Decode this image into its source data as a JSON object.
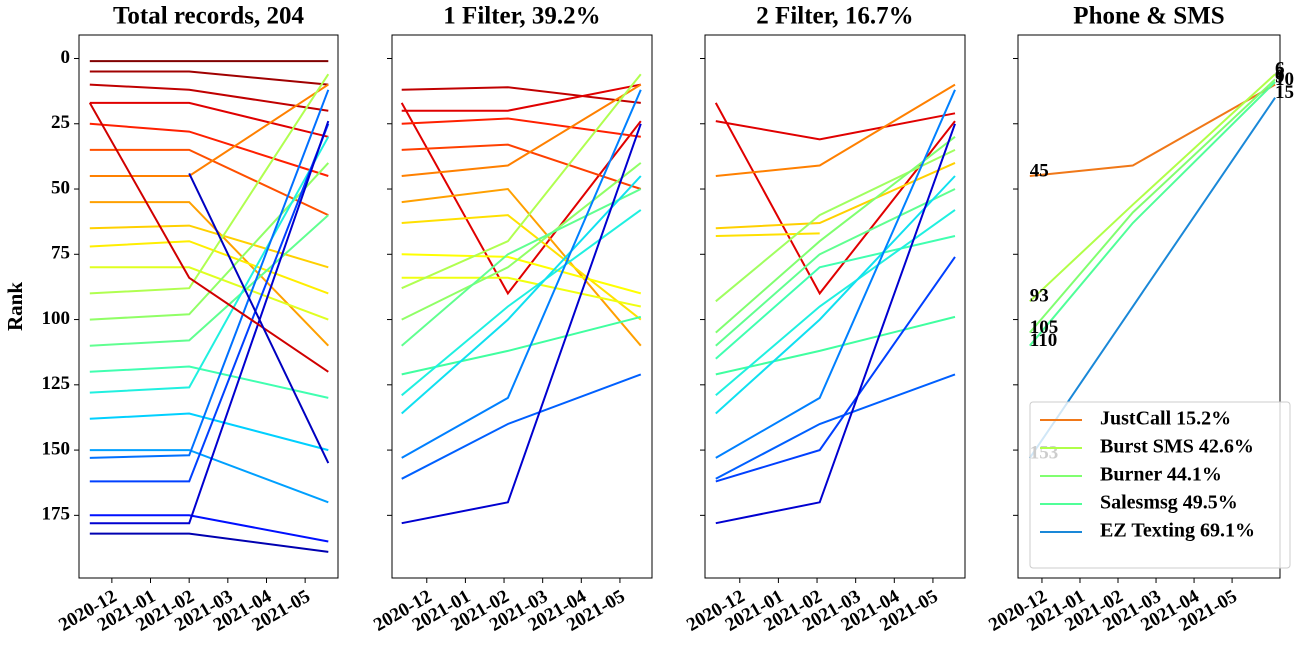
{
  "chart_data": [
    {
      "type": "line",
      "title": "Total records, 204",
      "ylabel": "Rank",
      "x": [
        -0.57,
        2.0,
        5.6
      ],
      "xlim": [
        -0.85,
        5.85
      ],
      "xticks": [
        {
          "value": 0,
          "label": "2020-12"
        },
        {
          "value": 1,
          "label": "2021-01"
        },
        {
          "value": 2,
          "label": "2021-02"
        },
        {
          "value": 3,
          "label": "2021-03"
        },
        {
          "value": 4,
          "label": "2021-04"
        },
        {
          "value": 5,
          "label": "2021-05"
        }
      ],
      "ylim": [
        199,
        -9
      ],
      "yticks": [
        0,
        25,
        50,
        75,
        100,
        125,
        150,
        175
      ],
      "ytick_labels": true,
      "series": [
        {
          "color": "#800000",
          "values": [
            1,
            1,
            1
          ]
        },
        {
          "color": "#a00000",
          "values": [
            5,
            5,
            10
          ]
        },
        {
          "color": "#c00000",
          "values": [
            10,
            12,
            20
          ]
        },
        {
          "color": "#e00000",
          "values": [
            17,
            17,
            30
          ]
        },
        {
          "color": "#ff2000",
          "values": [
            25,
            28,
            45
          ]
        },
        {
          "color": "#ff5000",
          "values": [
            35,
            35,
            60
          ]
        },
        {
          "color": "#ff8000",
          "values": [
            45,
            45,
            10
          ]
        },
        {
          "color": "#ffa000",
          "values": [
            55,
            55,
            110
          ]
        },
        {
          "color": "#ffd000",
          "values": [
            65,
            64,
            80
          ]
        },
        {
          "color": "#ffee00",
          "values": [
            72,
            70,
            90
          ]
        },
        {
          "color": "#e0ff20",
          "values": [
            80,
            80,
            100
          ]
        },
        {
          "color": "#b0ff50",
          "values": [
            90,
            88,
            6
          ]
        },
        {
          "color": "#90ff66",
          "values": [
            100,
            98,
            40
          ]
        },
        {
          "color": "#60ff90",
          "values": [
            110,
            108,
            60
          ]
        },
        {
          "color": "#40ffb0",
          "values": [
            120,
            118,
            130
          ]
        },
        {
          "color": "#20f0e0",
          "values": [
            128,
            126,
            30
          ]
        },
        {
          "color": "#00d0ff",
          "values": [
            138,
            136,
            150
          ]
        },
        {
          "color": "#00a0ff",
          "values": [
            150,
            150,
            170
          ]
        },
        {
          "color": "#0070ff",
          "values": [
            153,
            152,
            12
          ]
        },
        {
          "color": "#0040ff",
          "values": [
            162,
            162,
            25
          ]
        },
        {
          "color": "#0010ff",
          "values": [
            175,
            175,
            185
          ]
        },
        {
          "color": "#0000d0",
          "values": [
            178,
            178,
            24
          ]
        },
        {
          "color": "#0000b0",
          "values": [
            182,
            182,
            189
          ]
        },
        {
          "color": "#d00000",
          "values": [
            17,
            84,
            120
          ]
        },
        {
          "color": "#0000c0",
          "values": [
            null,
            44,
            155
          ]
        }
      ]
    },
    {
      "type": "line",
      "title": "1 Filter, 39.2%",
      "x": [
        -0.65,
        2.1,
        5.54
      ],
      "xlim": [
        -0.9,
        5.83
      ],
      "xticks": [
        {
          "value": 0,
          "label": "2020-12"
        },
        {
          "value": 1,
          "label": "2021-01"
        },
        {
          "value": 2,
          "label": "2021-02"
        },
        {
          "value": 3,
          "label": "2021-03"
        },
        {
          "value": 4,
          "label": "2021-04"
        },
        {
          "value": 5,
          "label": "2021-05"
        }
      ],
      "ylim": [
        199,
        -9
      ],
      "yticks": [
        0,
        25,
        50,
        75,
        100,
        125,
        150,
        175
      ],
      "ytick_labels": false,
      "series": [
        {
          "color": "#c00000",
          "values": [
            12,
            11,
            17
          ]
        },
        {
          "color": "#e00000",
          "values": [
            17,
            90,
            24
          ]
        },
        {
          "color": "#e00000",
          "values": [
            20,
            20,
            10
          ]
        },
        {
          "color": "#ff2000",
          "values": [
            25,
            23,
            30
          ]
        },
        {
          "color": "#ff4000",
          "values": [
            35,
            33,
            50
          ]
        },
        {
          "color": "#ff8000",
          "values": [
            45,
            41,
            10
          ]
        },
        {
          "color": "#ffa000",
          "values": [
            55,
            50,
            110
          ]
        },
        {
          "color": "#ffe000",
          "values": [
            63,
            60,
            100
          ]
        },
        {
          "color": "#ffff00",
          "values": [
            75,
            76,
            90
          ]
        },
        {
          "color": "#f0ff10",
          "values": [
            84,
            84,
            95
          ]
        },
        {
          "color": "#b0ff50",
          "values": [
            88,
            70,
            6
          ]
        },
        {
          "color": "#90ff66",
          "values": [
            100,
            80,
            40
          ]
        },
        {
          "color": "#60ff90",
          "values": [
            110,
            75,
            50
          ]
        },
        {
          "color": "#40ffa0",
          "values": [
            121,
            112,
            99
          ]
        },
        {
          "color": "#20f0e0",
          "values": [
            129,
            95,
            58
          ]
        },
        {
          "color": "#10e0f0",
          "values": [
            136,
            100,
            45
          ]
        },
        {
          "color": "#0080ff",
          "values": [
            153,
            130,
            12
          ]
        },
        {
          "color": "#0060ff",
          "values": [
            161,
            140,
            121
          ]
        },
        {
          "color": "#0000d0",
          "values": [
            178,
            170,
            25
          ]
        }
      ]
    },
    {
      "type": "line",
      "title": "2 Filter, 16.7%",
      "x": [
        -0.62,
        2.07,
        5.57
      ],
      "xlim": [
        -0.9,
        5.83
      ],
      "xticks": [
        {
          "value": 0,
          "label": "2020-12"
        },
        {
          "value": 1,
          "label": "2021-01"
        },
        {
          "value": 2,
          "label": "2021-02"
        },
        {
          "value": 3,
          "label": "2021-03"
        },
        {
          "value": 4,
          "label": "2021-04"
        },
        {
          "value": 5,
          "label": "2021-05"
        }
      ],
      "ylim": [
        199,
        -9
      ],
      "yticks": [
        0,
        25,
        50,
        75,
        100,
        125,
        150,
        175
      ],
      "ytick_labels": false,
      "series": [
        {
          "color": "#e00000",
          "values": [
            17,
            90,
            24
          ]
        },
        {
          "color": "#e00000",
          "values": [
            24,
            31,
            21
          ]
        },
        {
          "color": "#ff8000",
          "values": [
            45,
            41,
            10
          ]
        },
        {
          "color": "#ffd000",
          "values": [
            65,
            63,
            40
          ]
        },
        {
          "color": "#ffe000",
          "values": [
            68,
            67,
            null
          ]
        },
        {
          "color": "#b0ff50",
          "values": [
            88,
            null,
            6
          ]
        },
        {
          "color": "#a0ff60",
          "values": [
            93,
            60,
            35
          ]
        },
        {
          "color": "#80ff70",
          "values": [
            105,
            70,
            30
          ]
        },
        {
          "color": "#60ff90",
          "values": [
            110,
            75,
            50
          ]
        },
        {
          "color": "#40ffb0",
          "values": [
            115,
            80,
            68
          ]
        },
        {
          "color": "#40ffa0",
          "values": [
            121,
            112,
            99
          ]
        },
        {
          "color": "#20f0e0",
          "values": [
            129,
            95,
            58
          ]
        },
        {
          "color": "#10e0f0",
          "values": [
            136,
            100,
            45
          ]
        },
        {
          "color": "#0080ff",
          "values": [
            153,
            130,
            12
          ]
        },
        {
          "color": "#0060ff",
          "values": [
            161,
            140,
            121
          ]
        },
        {
          "color": "#0040ff",
          "values": [
            162,
            150,
            76
          ]
        },
        {
          "color": "#0000d0",
          "values": [
            178,
            170,
            25
          ]
        }
      ]
    },
    {
      "type": "line",
      "title": "Phone & SMS",
      "x": [
        -0.32,
        2.39,
        6.13
      ],
      "xlim": [
        -0.63,
        6.26
      ],
      "xticks": [
        {
          "value": 0,
          "label": "2020-12"
        },
        {
          "value": 1,
          "label": "2021-01"
        },
        {
          "value": 2,
          "label": "2021-02"
        },
        {
          "value": 3,
          "label": "2021-03"
        },
        {
          "value": 4,
          "label": "2021-04"
        },
        {
          "value": 5,
          "label": "2021-05"
        }
      ],
      "ylim": [
        199,
        -9
      ],
      "yticks": [
        0,
        25,
        50,
        75,
        100,
        125,
        150,
        175
      ],
      "ytick_labels": false,
      "point_labels": "ends",
      "legend": "lower right",
      "series": [
        {
          "name": "JustCall  15.2%",
          "color": "#f07818",
          "values": [
            45,
            41,
            10
          ]
        },
        {
          "name": "Burst SMS  42.6%",
          "color": "#b0ff48",
          "values": [
            93,
            56,
            6
          ]
        },
        {
          "name": "Burner  44.1%",
          "color": "#80ff70",
          "values": [
            105,
            59,
            8
          ]
        },
        {
          "name": "Salesmsg  49.5%",
          "color": "#50ff98",
          "values": [
            110,
            63,
            9
          ]
        },
        {
          "name": "EZ Texting  69.1%",
          "color": "#1a88d8",
          "values": [
            153,
            95,
            15
          ]
        }
      ]
    }
  ]
}
